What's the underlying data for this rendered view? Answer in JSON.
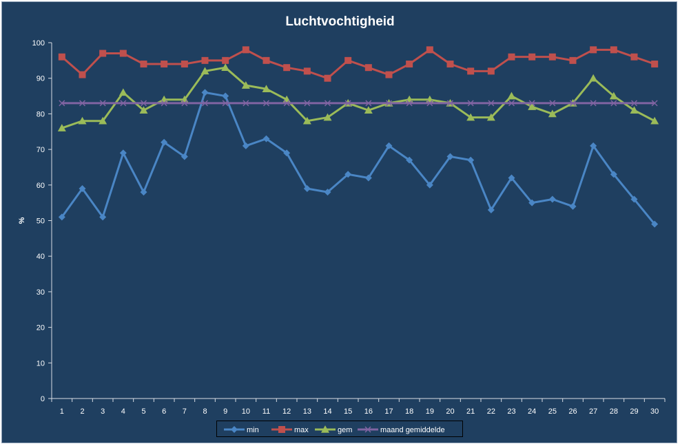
{
  "chart_data": {
    "type": "line",
    "title": "Luchtvochtigheid",
    "xlabel": "",
    "ylabel": "%",
    "ylim": [
      0,
      100
    ],
    "yticks": [
      0,
      10,
      20,
      30,
      40,
      50,
      60,
      70,
      80,
      90,
      100
    ],
    "categories": [
      "1",
      "2",
      "3",
      "4",
      "5",
      "6",
      "7",
      "8",
      "9",
      "10",
      "11",
      "12",
      "13",
      "14",
      "15",
      "16",
      "17",
      "18",
      "19",
      "20",
      "21",
      "22",
      "23",
      "24",
      "25",
      "26",
      "27",
      "28",
      "29",
      "30"
    ],
    "series": [
      {
        "name": "min",
        "color": "#4a86c5",
        "marker": "diamond",
        "values": [
          51,
          59,
          51,
          69,
          58,
          72,
          68,
          86,
          85,
          71,
          73,
          69,
          59,
          58,
          63,
          62,
          71,
          67,
          60,
          68,
          67,
          53,
          62,
          55,
          56,
          54,
          71,
          63,
          56,
          49
        ]
      },
      {
        "name": "max",
        "color": "#c0504d",
        "marker": "square",
        "values": [
          96,
          91,
          97,
          97,
          94,
          94,
          94,
          95,
          95,
          98,
          95,
          93,
          92,
          90,
          95,
          93,
          91,
          94,
          98,
          94,
          92,
          92,
          96,
          96,
          96,
          95,
          98,
          98,
          96,
          94
        ]
      },
      {
        "name": "gem",
        "color": "#9bbb59",
        "marker": "triangle",
        "values": [
          76,
          78,
          78,
          86,
          81,
          84,
          84,
          92,
          93,
          88,
          87,
          84,
          78,
          79,
          83,
          81,
          83,
          84,
          84,
          83,
          79,
          79,
          85,
          82,
          80,
          83,
          90,
          85,
          81,
          78
        ]
      },
      {
        "name": "maand gemiddelde",
        "color": "#8064a2",
        "marker": "x",
        "values": [
          83,
          83,
          83,
          83,
          83,
          83,
          83,
          83,
          83,
          83,
          83,
          83,
          83,
          83,
          83,
          83,
          83,
          83,
          83,
          83,
          83,
          83,
          83,
          83,
          83,
          83,
          83,
          83,
          83,
          83
        ]
      }
    ],
    "legend_position": "bottom",
    "grid": false,
    "background": "#1f3f60",
    "text_color": "#ffffff"
  }
}
